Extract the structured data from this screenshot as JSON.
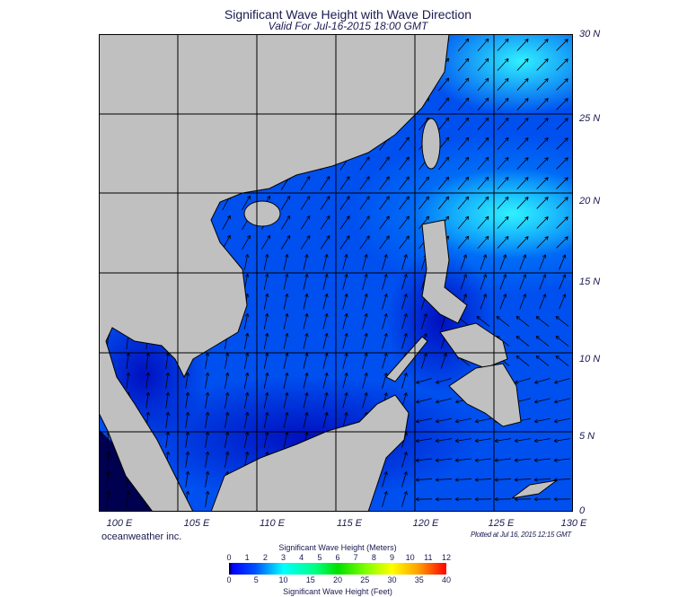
{
  "title": "Significant Wave Height with Wave Direction",
  "subtitle": "Valid For Jul-16-2015 18:00 GMT",
  "lat_labels": [
    "30 N",
    "25 N",
    "20 N",
    "15 N",
    "10 N",
    "5 N",
    "0"
  ],
  "lon_labels": [
    "100 E",
    "105 E",
    "110 E",
    "115 E",
    "120 E",
    "125 E",
    "130 E"
  ],
  "brand": "oceanweather inc.",
  "plotted": "Plotted at Jul 16, 2015 12:15 GMT",
  "colorbar": {
    "meters_title": "Significant Wave Height (Meters)",
    "feet_title": "Significant Wave Height (Feet)",
    "meters_ticks": [
      "0",
      "1",
      "2",
      "3",
      "4",
      "5",
      "6",
      "7",
      "8",
      "9",
      "10",
      "11",
      "12"
    ],
    "feet_ticks": [
      "0",
      "5",
      "10",
      "15",
      "20",
      "25",
      "30",
      "35",
      "40"
    ]
  },
  "colors": {
    "land": "#c0c0c0",
    "ocean_base": "#0050f0",
    "ocean_high": "#00e0ff",
    "ocean_low": "#0010c0"
  }
}
